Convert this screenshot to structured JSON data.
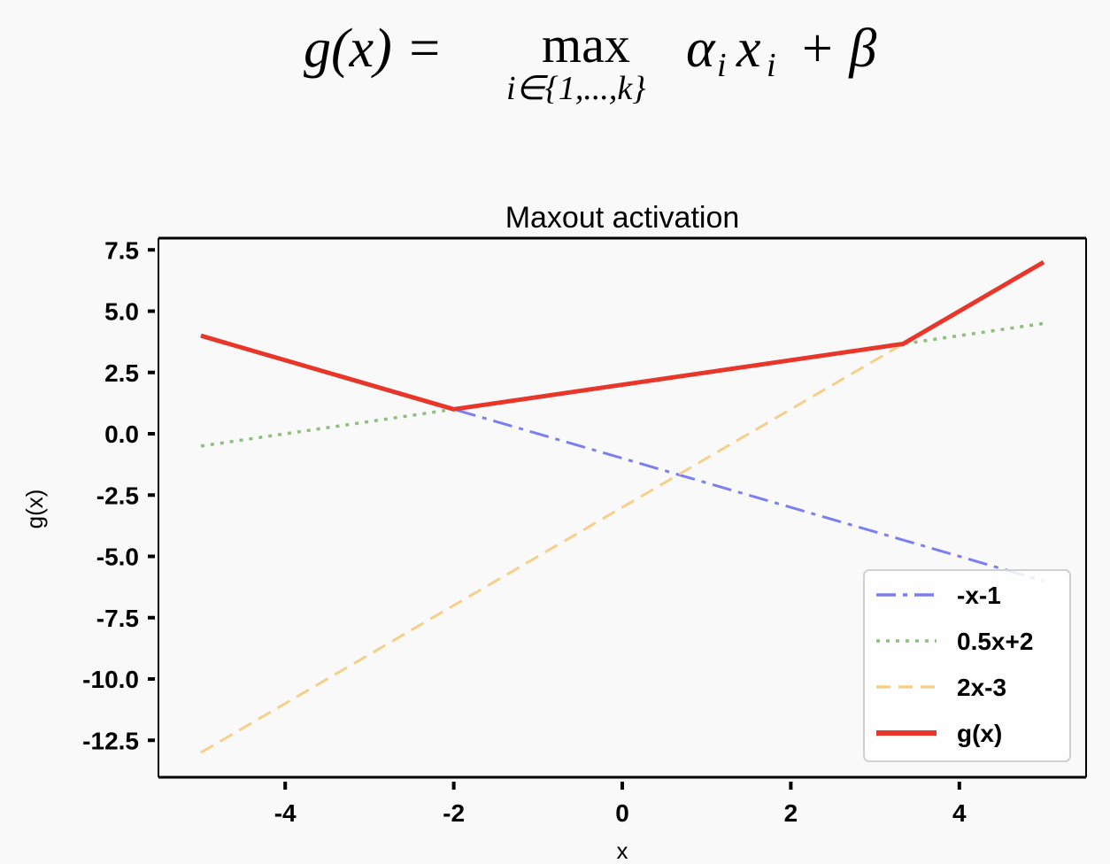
{
  "formula": {
    "lhs": "g(x) =",
    "operator": "max",
    "subscript": "i∈{1,...,k}",
    "term_alpha": "α",
    "term_i1": "i",
    "term_x": "x",
    "term_i2": "i",
    "plus_beta": "+ β"
  },
  "chart_data": {
    "type": "line",
    "title": "Maxout activation",
    "xlabel": "x",
    "ylabel": "g(x)",
    "xlim": [
      -5.5,
      5.5
    ],
    "ylim": [
      -14,
      8
    ],
    "xticks": [
      -4,
      -2,
      0,
      2,
      4
    ],
    "xtick_labels": [
      "-4",
      "-2",
      "0",
      "2",
      "4"
    ],
    "yticks": [
      7.5,
      5.0,
      2.5,
      0.0,
      -2.5,
      -5.0,
      -7.5,
      -10.0,
      -12.5
    ],
    "ytick_labels": [
      "7.5",
      "5.0",
      "2.5",
      "0.0",
      "-2.5",
      "-5.0",
      "-7.5",
      "-10.0",
      "-12.5"
    ],
    "grid": false,
    "legend_position": "lower right",
    "series": [
      {
        "name": "-x-1",
        "color": "#7b7ff0",
        "style": "dashdot",
        "x": [
          -5,
          5
        ],
        "y": [
          4,
          -6
        ]
      },
      {
        "name": "0.5x+2",
        "color": "#8fbf7f",
        "style": "dotted",
        "x": [
          -5,
          5
        ],
        "y": [
          -0.5,
          4.5
        ]
      },
      {
        "name": "2x-3",
        "color": "#f5d08a",
        "style": "dashed",
        "x": [
          -5,
          5
        ],
        "y": [
          -13,
          7
        ]
      },
      {
        "name": "g(x)",
        "color": "#e8362a",
        "style": "solid",
        "x": [
          -5,
          -2,
          3.333,
          5
        ],
        "y": [
          4,
          1,
          3.667,
          7
        ]
      }
    ]
  }
}
